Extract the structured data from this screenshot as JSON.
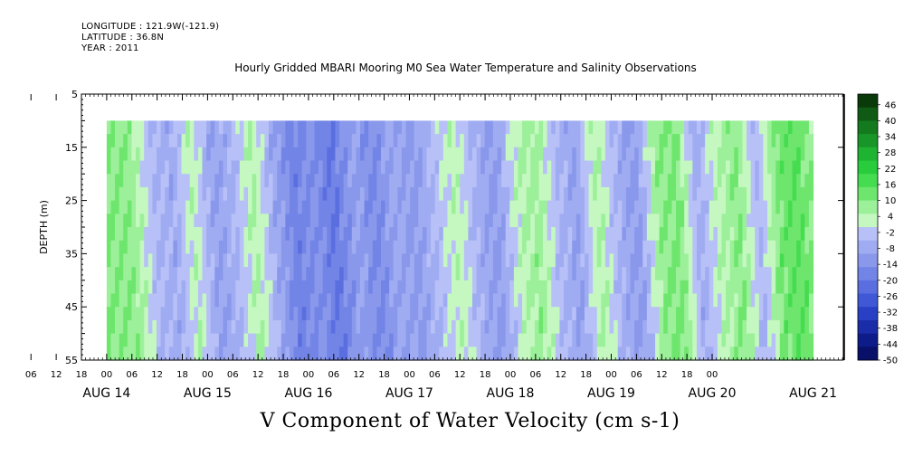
{
  "header": {
    "longitude": "LONGITUDE : 121.9W(-121.9)",
    "latitude": "LATITUDE : 36.8N",
    "year": "YEAR : 2011"
  },
  "chart_data": {
    "type": "heatmap",
    "title": "Hourly Gridded MBARI Mooring M0 Sea Water Temperature and Salinity Observations",
    "xlabel": "V Component of Water Velocity (cm s-1)",
    "ylabel": "DEPTH (m)",
    "y_ticks": [
      "5",
      "15",
      "25",
      "35",
      "45",
      "55"
    ],
    "ylim": [
      5,
      55
    ],
    "y_inverted": true,
    "data_depth_range": [
      10,
      55
    ],
    "x_hour_ticks": [
      "06",
      "12",
      "18",
      "00",
      "06",
      "12",
      "18",
      "00",
      "06",
      "12",
      "18",
      "00",
      "06",
      "12",
      "18",
      "00",
      "06",
      "12",
      "18",
      "00",
      "06",
      "12",
      "18",
      "00",
      "06",
      "12",
      "18",
      "00"
    ],
    "x_day_labels": [
      "AUG 14",
      "AUG 15",
      "AUG 16",
      "AUG 17",
      "AUG 18",
      "AUG 19",
      "AUG 20",
      "AUG 21"
    ],
    "colorbar": {
      "labels": [
        "46",
        "40",
        "34",
        "28",
        "22",
        "16",
        "10",
        "4",
        "-2",
        "-8",
        "-14",
        "-20",
        "-26",
        "-32",
        "-38",
        "-44",
        "-50"
      ],
      "range": [
        -50,
        50
      ],
      "colors": [
        "#0a3a0a",
        "#0f5a14",
        "#147a1e",
        "#189628",
        "#1eb432",
        "#28cc3c",
        "#46dc50",
        "#6ee66e",
        "#9cf09a",
        "#c4f8c0",
        "#b8c0f8",
        "#a0acf2",
        "#8a98ec",
        "#7284e6",
        "#5a6ee0",
        "#4058d6",
        "#2a40c4",
        "#1a2ca8",
        "#0e1c8a",
        "#08106a"
      ]
    },
    "v_profile": [
      {
        "day": 14.0,
        "v": 10
      },
      {
        "day": 14.2,
        "v": 8
      },
      {
        "day": 14.4,
        "v": -4
      },
      {
        "day": 14.6,
        "v": -8
      },
      {
        "day": 14.8,
        "v": 4
      },
      {
        "day": 15.0,
        "v": -10
      },
      {
        "day": 15.2,
        "v": -6
      },
      {
        "day": 15.4,
        "v": 6
      },
      {
        "day": 15.6,
        "v": -8
      },
      {
        "day": 15.8,
        "v": -18
      },
      {
        "day": 16.0,
        "v": -14
      },
      {
        "day": 16.2,
        "v": -20
      },
      {
        "day": 16.4,
        "v": -10
      },
      {
        "day": 16.6,
        "v": -16
      },
      {
        "day": 16.8,
        "v": -8
      },
      {
        "day": 17.0,
        "v": -12
      },
      {
        "day": 17.2,
        "v": -4
      },
      {
        "day": 17.4,
        "v": 4
      },
      {
        "day": 17.6,
        "v": -6
      },
      {
        "day": 17.8,
        "v": -12
      },
      {
        "day": 18.0,
        "v": 2
      },
      {
        "day": 18.2,
        "v": 8
      },
      {
        "day": 18.4,
        "v": -4
      },
      {
        "day": 18.6,
        "v": -10
      },
      {
        "day": 18.8,
        "v": 6
      },
      {
        "day": 19.0,
        "v": -6
      },
      {
        "day": 19.2,
        "v": -12
      },
      {
        "day": 19.4,
        "v": 8
      },
      {
        "day": 19.6,
        "v": 12
      },
      {
        "day": 19.8,
        "v": -8
      },
      {
        "day": 20.0,
        "v": 4
      },
      {
        "day": 20.2,
        "v": 10
      },
      {
        "day": 20.4,
        "v": -6
      },
      {
        "day": 20.6,
        "v": 12
      },
      {
        "day": 20.8,
        "v": 14
      },
      {
        "day": 21.0,
        "v": 6
      }
    ]
  }
}
